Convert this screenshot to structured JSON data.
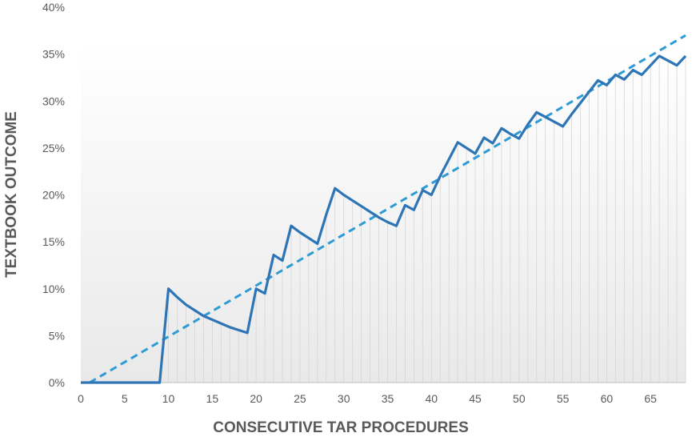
{
  "chart_data": {
    "type": "line",
    "title": "",
    "xlabel": "CONSECUTIVE TAR PROCEDURES",
    "ylabel": "TEXTBOOK OUTCOME",
    "xlim": [
      0,
      69
    ],
    "ylim": [
      0,
      40
    ],
    "x_ticks": [
      0,
      5,
      10,
      15,
      20,
      25,
      30,
      35,
      40,
      45,
      50,
      55,
      60,
      65
    ],
    "x_tick_labels": [
      "0",
      "5",
      "10",
      "15",
      "20",
      "25",
      "30",
      "35",
      "40",
      "45",
      "50",
      "55",
      "60",
      "65"
    ],
    "y_ticks": [
      0,
      5,
      10,
      15,
      20,
      25,
      30,
      35,
      40
    ],
    "y_tick_labels": [
      "0%",
      "5%",
      "10%",
      "15%",
      "20%",
      "25%",
      "30%",
      "35%",
      "40%"
    ],
    "grid": "vertical lines at each procedure",
    "legend": "none",
    "series": [
      {
        "style": "solid",
        "color": "#2e75b6",
        "x": [
          0,
          1,
          2,
          3,
          4,
          5,
          6,
          7,
          8,
          9,
          10,
          11,
          12,
          13,
          14,
          15,
          16,
          17,
          18,
          19,
          20,
          21,
          22,
          23,
          24,
          25,
          26,
          27,
          28,
          29,
          30,
          31,
          32,
          33,
          34,
          35,
          36,
          37,
          38,
          39,
          40,
          41,
          42,
          43,
          44,
          45,
          46,
          47,
          48,
          49,
          50,
          51,
          52,
          53,
          54,
          55,
          56,
          57,
          58,
          59,
          60,
          61,
          62,
          63,
          64,
          65,
          66,
          67,
          68,
          69
        ],
        "values": [
          0,
          0,
          0,
          0,
          0,
          0,
          0,
          0,
          0,
          0,
          10.0,
          9.1,
          8.3,
          7.7,
          7.1,
          6.7,
          6.3,
          5.9,
          5.6,
          5.3,
          10.0,
          9.5,
          13.6,
          13.0,
          16.7,
          16.0,
          15.4,
          14.8,
          17.9,
          20.7,
          20.0,
          19.4,
          18.8,
          18.2,
          17.6,
          17.1,
          16.7,
          18.9,
          18.4,
          20.5,
          20.0,
          22.0,
          23.8,
          25.6,
          25.0,
          24.4,
          26.1,
          25.5,
          27.1,
          26.5,
          26.0,
          27.5,
          28.8,
          28.3,
          27.8,
          27.3,
          28.6,
          29.8,
          31.0,
          32.2,
          31.7,
          32.8,
          32.3,
          33.3,
          32.8,
          33.8,
          34.8,
          34.3,
          33.8,
          34.8
        ]
      },
      {
        "style": "dashed",
        "color": "#2e9bd4",
        "x": [
          1,
          69
        ],
        "values": [
          0,
          37.0
        ]
      }
    ]
  }
}
